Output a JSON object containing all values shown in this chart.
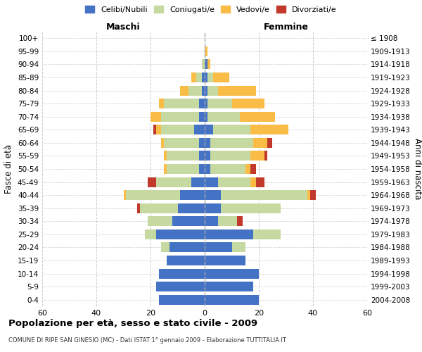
{
  "age_groups": [
    "0-4",
    "5-9",
    "10-14",
    "15-19",
    "20-24",
    "25-29",
    "30-34",
    "35-39",
    "40-44",
    "45-49",
    "50-54",
    "55-59",
    "60-64",
    "65-69",
    "70-74",
    "75-79",
    "80-84",
    "85-89",
    "90-94",
    "95-99",
    "100+"
  ],
  "birth_years": [
    "2004-2008",
    "1999-2003",
    "1994-1998",
    "1989-1993",
    "1984-1988",
    "1979-1983",
    "1974-1978",
    "1969-1973",
    "1964-1968",
    "1959-1963",
    "1954-1958",
    "1949-1953",
    "1944-1948",
    "1939-1943",
    "1934-1938",
    "1929-1933",
    "1924-1928",
    "1919-1923",
    "1914-1918",
    "1909-1913",
    "≤ 1908"
  ],
  "maschi": {
    "celibi": [
      17,
      18,
      17,
      14,
      13,
      18,
      12,
      10,
      9,
      5,
      2,
      2,
      2,
      4,
      2,
      2,
      1,
      1,
      0,
      0,
      0
    ],
    "coniugati": [
      0,
      0,
      0,
      0,
      3,
      4,
      9,
      14,
      20,
      13,
      12,
      12,
      13,
      12,
      14,
      13,
      5,
      2,
      1,
      0,
      0
    ],
    "vedovi": [
      0,
      0,
      0,
      0,
      0,
      0,
      0,
      0,
      1,
      0,
      1,
      1,
      1,
      2,
      4,
      2,
      3,
      2,
      0,
      0,
      0
    ],
    "divorziati": [
      0,
      0,
      0,
      0,
      0,
      0,
      0,
      1,
      0,
      3,
      0,
      0,
      0,
      1,
      0,
      0,
      0,
      0,
      0,
      0,
      0
    ]
  },
  "femmine": {
    "nubili": [
      20,
      18,
      20,
      15,
      10,
      18,
      5,
      6,
      6,
      5,
      2,
      2,
      2,
      3,
      1,
      1,
      1,
      1,
      1,
      0,
      0
    ],
    "coniugate": [
      0,
      0,
      0,
      0,
      5,
      10,
      7,
      22,
      32,
      12,
      13,
      15,
      16,
      14,
      12,
      9,
      4,
      2,
      0,
      0,
      0
    ],
    "vedove": [
      0,
      0,
      0,
      0,
      0,
      0,
      0,
      0,
      1,
      2,
      2,
      5,
      5,
      14,
      13,
      12,
      14,
      6,
      1,
      1,
      0
    ],
    "divorziate": [
      0,
      0,
      0,
      0,
      0,
      0,
      2,
      0,
      2,
      3,
      2,
      1,
      2,
      0,
      0,
      0,
      0,
      0,
      0,
      0,
      0
    ]
  },
  "colors": {
    "celibi": "#4472c4",
    "coniugati": "#c5d9a0",
    "vedovi": "#f9bc46",
    "divorziati": "#c0392b"
  },
  "xlim": 60,
  "title": "Popolazione per età, sesso e stato civile - 2009",
  "subtitle": "COMUNE DI RIPE SAN GINESIO (MC) - Dati ISTAT 1° gennaio 2009 - Elaborazione TUTTITALIA.IT",
  "xlabel_left": "Maschi",
  "xlabel_right": "Femmine",
  "ylabel_left": "Fasce di età",
  "ylabel_right": "Anni di nascita",
  "legend_labels": [
    "Celibi/Nubili",
    "Coniugati/e",
    "Vedovi/e",
    "Divorziati/e"
  ]
}
